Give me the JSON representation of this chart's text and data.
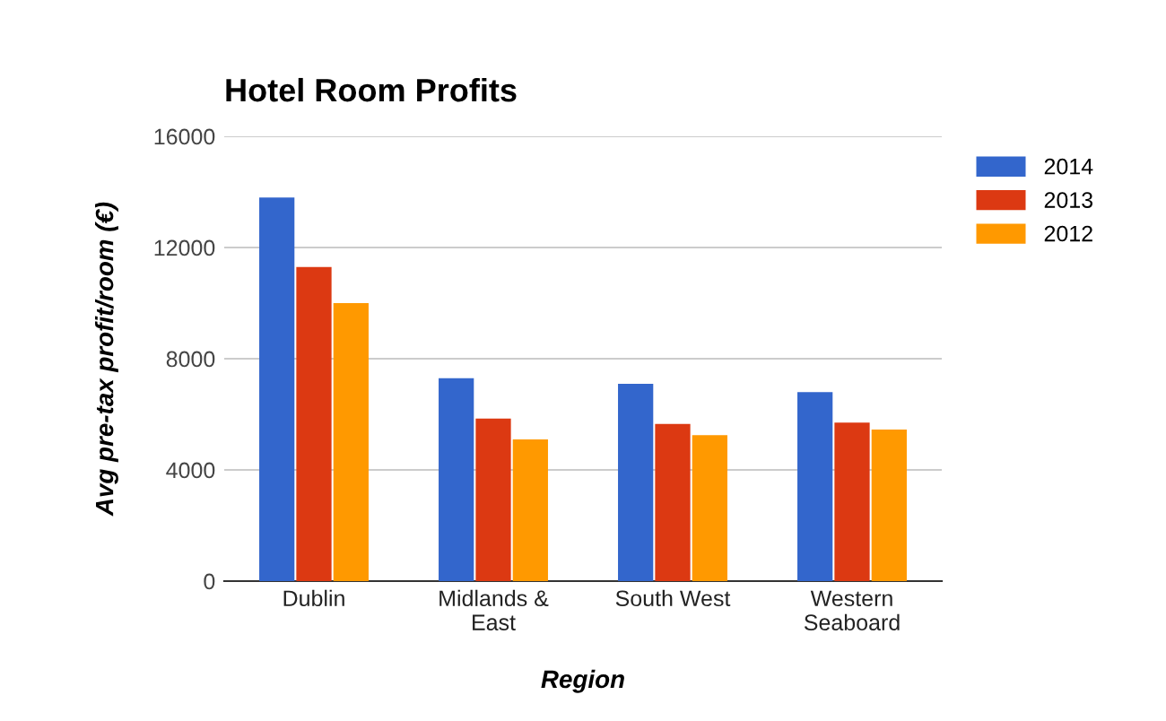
{
  "chart_data": {
    "type": "bar",
    "title": "Hotel Room Profits",
    "xlabel": "Region",
    "ylabel": "Avg pre-tax profit/room (€)",
    "categories": [
      "Dublin",
      "Midlands &\nEast",
      "South West",
      "Western\nSeaboard"
    ],
    "series": [
      {
        "name": "2014",
        "color": "#3366cc",
        "values": [
          13800,
          7300,
          7100,
          6800
        ]
      },
      {
        "name": "2013",
        "color": "#dc3912",
        "values": [
          11300,
          5850,
          5650,
          5700
        ]
      },
      {
        "name": "2012",
        "color": "#ff9900",
        "values": [
          10000,
          5100,
          5250,
          5450
        ]
      }
    ],
    "ylim": [
      0,
      16000
    ],
    "yticks": [
      0,
      4000,
      8000,
      12000,
      16000
    ],
    "grid": "y",
    "legend": "top right"
  }
}
